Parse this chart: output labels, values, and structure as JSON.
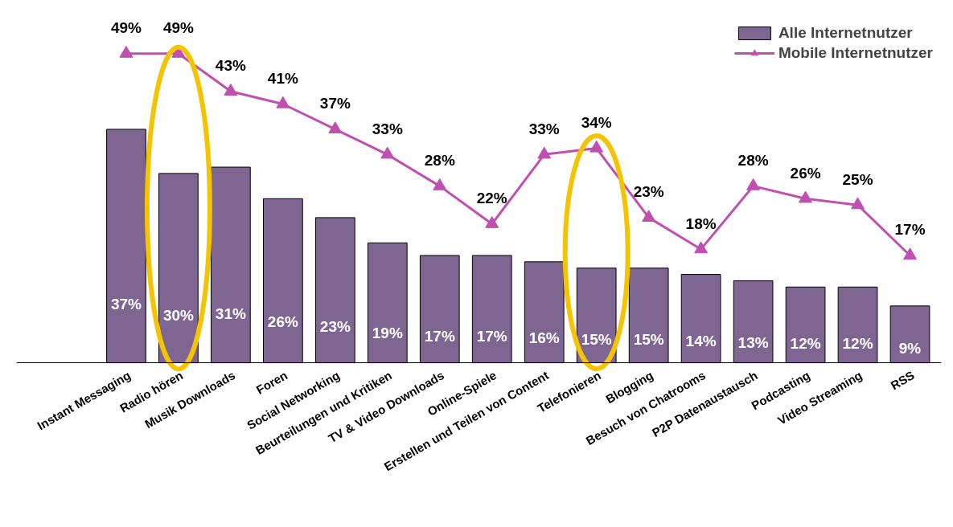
{
  "chart_data": {
    "type": "bar",
    "categories": [
      "Instant Messaging",
      "Radio hören",
      "Musik Downloads",
      "Foren",
      "Social Networking",
      "Beurteilungen und Kritiken",
      "TV & Video Downloads",
      "Online-Spiele",
      "Erstellen und Teilen von Content",
      "Telefonieren",
      "Blogging",
      "Besuch von Chatrooms",
      "P2P Datenaustausch",
      "Podcasting",
      "Video Streaming",
      "RSS"
    ],
    "series": [
      {
        "name": "Alle Internetnutzer",
        "type": "bar",
        "color": "#7f6592",
        "values": [
          37,
          30,
          31,
          26,
          23,
          19,
          17,
          17,
          16,
          15,
          15,
          14,
          13,
          12,
          12,
          9
        ],
        "value_labels": [
          "37%",
          "30%",
          "31%",
          "26%",
          "23%",
          "19%",
          "17%",
          "17%",
          "16%",
          "15%",
          "15%",
          "14%",
          "13%",
          "12%",
          "12%",
          "9%"
        ]
      },
      {
        "name": "Mobile Internetnutzer",
        "type": "line",
        "color": "#c050b0",
        "marker": "triangle",
        "values": [
          49,
          49,
          43,
          41,
          37,
          33,
          28,
          22,
          33,
          34,
          23,
          18,
          28,
          26,
          25,
          17
        ],
        "value_labels": [
          "49%",
          "49%",
          "43%",
          "41%",
          "37%",
          "33%",
          "28%",
          "22%",
          "33%",
          "34%",
          "23%",
          "18%",
          "28%",
          "26%",
          "25%",
          "17%"
        ]
      }
    ],
    "legend": "top right",
    "grid": false
  }
}
